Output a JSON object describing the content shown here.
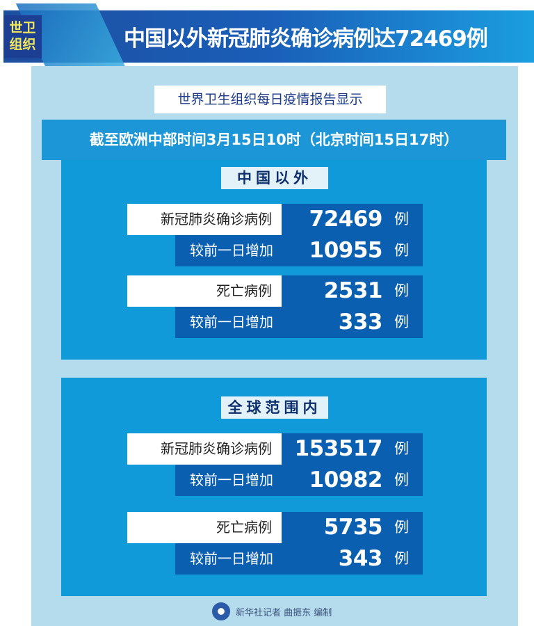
{
  "header": {
    "tag": "世卫组织",
    "tag_line1": "世卫",
    "tag_line2": "组织",
    "title": "中国以外新冠肺炎确诊病例达72469例"
  },
  "subtitle": "世界卫生组织每日疫情报告显示",
  "date_line": "截至欧洲中部时间3月15日10时（北京时间15日17时）",
  "sections": [
    {
      "label": "中国以外",
      "rows": [
        {
          "label": "新冠肺炎确诊病例",
          "value": "72469",
          "unit": "例"
        },
        {
          "label": "较前一日增加",
          "value": "10955",
          "unit": "例"
        },
        {
          "label": "死亡病例",
          "value": "2531",
          "unit": "例"
        },
        {
          "label": "较前一日增加",
          "value": "333",
          "unit": "例"
        }
      ]
    },
    {
      "label": "全球范围内",
      "rows": [
        {
          "label": "新冠肺炎确诊病例",
          "value": "153517",
          "unit": "例"
        },
        {
          "label": "较前一日增加",
          "value": "10982",
          "unit": "例"
        },
        {
          "label": "死亡病例",
          "value": "5735",
          "unit": "例"
        },
        {
          "label": "较前一日增加",
          "value": "343",
          "unit": "例"
        }
      ]
    }
  ],
  "footer": {
    "credit": "新华社记者 曲振东 编制"
  },
  "colors": {
    "banner": "#1d4fa0",
    "section": "#109ad9",
    "value_bg": "#0b5fb0",
    "tag_text": "#f3e85a"
  }
}
